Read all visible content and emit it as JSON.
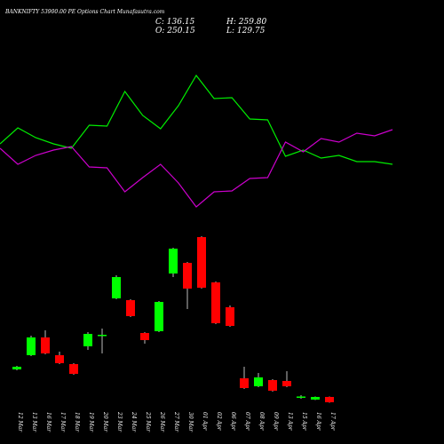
{
  "header": {
    "title": "BANKNIFTY 53900.00 PE Options Chart Munafasutra.com",
    "close": "C: 136.15",
    "high": "H: 259.80",
    "open": "O: 250.15",
    "low": "L: 129.75"
  },
  "chart_data": [
    {
      "type": "line",
      "ylim": [
        0,
        200
      ],
      "series": [
        {
          "color": "#00ee00",
          "values": [
            78,
            96,
            85,
            78,
            73,
            99,
            98,
            137,
            110,
            95,
            121,
            155,
            129,
            130,
            106,
            105,
            64,
            71,
            62,
            65,
            58,
            58,
            55
          ]
        },
        {
          "color": "#cc00cc",
          "values": [
            73,
            55,
            65,
            71,
            75,
            52,
            51,
            24,
            40,
            55,
            34,
            7,
            24,
            25,
            39,
            40,
            80,
            69,
            84,
            80,
            90,
            87,
            94
          ]
        }
      ]
    },
    {
      "type": "candlestick",
      "ylim": [
        0,
        800
      ],
      "up_color": "#00ff00",
      "down_color": "#ff0000",
      "categories": [
        "12 Mar",
        "13 Mar",
        "16 Mar",
        "17 Mar",
        "18 Mar",
        "19 Mar",
        "20 Mar",
        "23 Mar",
        "24 Mar",
        "25 Mar",
        "26 Mar",
        "27 Mar",
        "30 Mar",
        "01 Apr",
        "02 Apr",
        "06 Apr",
        "07 Apr",
        "08 Apr",
        "09 Apr",
        "13 Apr",
        "15 Apr",
        "16 Apr",
        "17 Apr"
      ],
      "open": [
        176,
        240,
        320,
        240,
        200,
        280,
        328,
        496,
        488,
        340,
        348,
        608,
        656,
        772,
        568,
        456,
        136,
        100,
        128,
        124,
        52,
        40,
        52
      ],
      "high": [
        192,
        328,
        352,
        256,
        204,
        344,
        360,
        600,
        492,
        344,
        484,
        724,
        660,
        776,
        572,
        464,
        188,
        160,
        132,
        168,
        60,
        54,
        54
      ],
      "low": [
        172,
        236,
        244,
        200,
        152,
        264,
        248,
        492,
        412,
        292,
        344,
        592,
        448,
        540,
        380,
        368,
        88,
        96,
        76,
        96,
        44,
        38,
        26
      ],
      "close": [
        188,
        320,
        248,
        204,
        156,
        336,
        332,
        592,
        416,
        308,
        480,
        720,
        540,
        544,
        384,
        372,
        92,
        140,
        80,
        100,
        54,
        52,
        28
      ]
    }
  ]
}
